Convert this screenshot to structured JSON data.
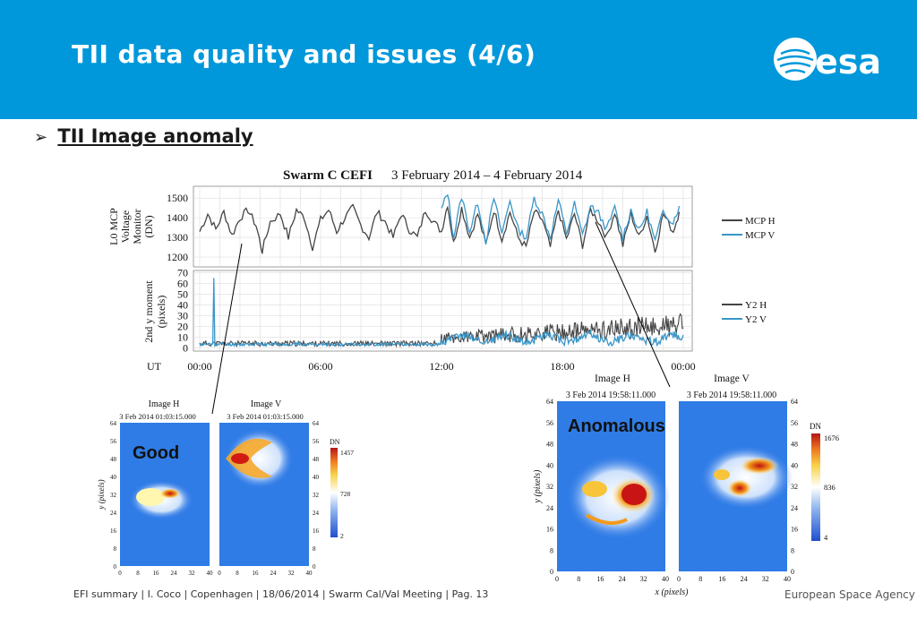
{
  "slide": {
    "title": "TII data quality and issues (4/6)",
    "bullet": "TII Image anomaly",
    "footer": "EFI summary | I. Coco | Copenhagen | 18/06/2014 | Swarm Cal/Val Meeting | Pag. 13",
    "footer_right": "European Space Agency",
    "logo_text": "esa",
    "colors": {
      "header": "#0098db",
      "series_h": "#444444",
      "series_v": "#3a96c8"
    }
  },
  "chart_data": [
    {
      "type": "line",
      "title_bold": "Swarm C CEFI",
      "title_rest": "3 February 2014 – 4 February 2014",
      "ylabel": [
        "L0 MCP",
        "Voltage",
        "Monitor",
        "(DN)"
      ],
      "yticks": [
        1200,
        1300,
        1400,
        1500
      ],
      "ylim": [
        1150,
        1560
      ],
      "xlim": [
        0,
        24
      ],
      "grid": true,
      "legend": "right",
      "series": [
        {
          "name": "MCP H",
          "values_desc": "fluctuates between ~1200 and ~1450 throughout the day"
        },
        {
          "name": "MCP V",
          "values_desc": "visible after 12:00, ~1300–1520"
        }
      ],
      "profile_h": [
        [
          0,
          1330
        ],
        [
          0.4,
          1420
        ],
        [
          0.8,
          1340
        ],
        [
          1.2,
          1430
        ],
        [
          1.6,
          1310
        ],
        [
          2,
          1400
        ],
        [
          2.4,
          1440
        ],
        [
          2.8,
          1360
        ],
        [
          3.1,
          1230
        ],
        [
          3.5,
          1380
        ],
        [
          4,
          1420
        ],
        [
          4.4,
          1300
        ],
        [
          4.8,
          1440
        ],
        [
          5.2,
          1400
        ],
        [
          5.6,
          1250
        ],
        [
          6,
          1390
        ],
        [
          6.4,
          1440
        ],
        [
          6.8,
          1330
        ],
        [
          7.2,
          1400
        ],
        [
          7.6,
          1450
        ],
        [
          8,
          1360
        ],
        [
          8.4,
          1300
        ],
        [
          8.8,
          1430
        ],
        [
          9.2,
          1380
        ],
        [
          9.6,
          1300
        ],
        [
          10,
          1420
        ],
        [
          10.4,
          1340
        ],
        [
          10.8,
          1300
        ],
        [
          11.2,
          1440
        ],
        [
          11.6,
          1380
        ],
        [
          12,
          1330
        ],
        [
          12.3,
          1470
        ],
        [
          12.6,
          1270
        ],
        [
          13,
          1450
        ],
        [
          13.4,
          1300
        ],
        [
          13.8,
          1420
        ],
        [
          14.2,
          1260
        ],
        [
          14.6,
          1440
        ],
        [
          15,
          1290
        ],
        [
          15.4,
          1430
        ],
        [
          15.8,
          1300
        ],
        [
          16.2,
          1250
        ],
        [
          16.6,
          1430
        ],
        [
          17,
          1390
        ],
        [
          17.4,
          1250
        ],
        [
          17.8,
          1440
        ],
        [
          18.2,
          1290
        ],
        [
          18.6,
          1420
        ],
        [
          19,
          1260
        ],
        [
          19.4,
          1440
        ],
        [
          19.8,
          1380
        ],
        [
          20.2,
          1300
        ],
        [
          20.6,
          1430
        ],
        [
          21,
          1260
        ],
        [
          21.4,
          1420
        ],
        [
          21.8,
          1300
        ],
        [
          22.2,
          1410
        ],
        [
          22.6,
          1230
        ],
        [
          23,
          1420
        ],
        [
          23.5,
          1330
        ],
        [
          23.8,
          1430
        ]
      ],
      "profile_v": [
        [
          12,
          1440
        ],
        [
          12.3,
          1530
        ],
        [
          12.6,
          1300
        ],
        [
          13,
          1510
        ],
        [
          13.4,
          1330
        ],
        [
          13.8,
          1480
        ],
        [
          14.2,
          1280
        ],
        [
          14.6,
          1500
        ],
        [
          15,
          1320
        ],
        [
          15.4,
          1490
        ],
        [
          15.8,
          1340
        ],
        [
          16.2,
          1300
        ],
        [
          16.6,
          1500
        ],
        [
          17,
          1420
        ],
        [
          17.4,
          1300
        ],
        [
          17.8,
          1490
        ],
        [
          18.2,
          1320
        ],
        [
          18.6,
          1470
        ],
        [
          19,
          1310
        ],
        [
          19.4,
          1460
        ],
        [
          19.8,
          1420
        ],
        [
          20.2,
          1340
        ],
        [
          20.6,
          1450
        ],
        [
          21,
          1300
        ],
        [
          21.4,
          1440
        ],
        [
          21.8,
          1330
        ],
        [
          22.2,
          1430
        ],
        [
          22.6,
          1280
        ],
        [
          23,
          1430
        ],
        [
          23.5,
          1380
        ],
        [
          23.8,
          1460
        ]
      ],
      "_": ""
    },
    {
      "type": "line",
      "ylabel": [
        "2nd y moment",
        "(pixels)"
      ],
      "yticks": [
        0,
        10,
        20,
        30,
        40,
        50,
        60,
        70
      ],
      "ylim": [
        -3,
        72
      ],
      "xlim": [
        0,
        24
      ],
      "xlabel": "UT",
      "xticks": [
        "00:00",
        "06:00",
        "12:00",
        "18:00",
        "00:00"
      ],
      "grid": true,
      "legend": "right",
      "series": [
        {
          "name": "Y2  H",
          "values_desc": "near 0–8 until 12:00, then rising to 10–30"
        },
        {
          "name": "Y2  V",
          "values_desc": "near 0–5 with spike to ~65 at ~00:40, ~5–20 after 12:00"
        }
      ],
      "spike_v": {
        "x": 0.7,
        "y": 65
      }
    },
    {
      "type": "heatmap",
      "label": "Good",
      "panels": [
        {
          "name": "Image H",
          "timestamp": "3 Feb 2014 01:03:15.000"
        },
        {
          "name": "Image V",
          "timestamp": "3 Feb 2014 01:03:15.000"
        }
      ],
      "yticks": [
        0,
        8,
        16,
        24,
        32,
        40,
        48,
        56,
        64
      ],
      "xticks": [
        0,
        8,
        16,
        24,
        32,
        40
      ],
      "ylabel": "y (pixels)",
      "colorbar": {
        "title": "DN",
        "max": "1457",
        "mid": "728",
        "min": "2"
      }
    },
    {
      "type": "heatmap",
      "label": "Anomalous",
      "panels": [
        {
          "name": "Image H",
          "timestamp": "3 Feb 2014 19:58:11.000"
        },
        {
          "name": "Image V",
          "timestamp": "3 Feb 2014 19:58:11.000"
        }
      ],
      "yticks": [
        0,
        8,
        16,
        24,
        32,
        40,
        48,
        56,
        64
      ],
      "xticks": [
        0,
        8,
        16,
        24,
        32,
        40
      ],
      "xlabel": "x (pixels)",
      "ylabel": "y (pixels)",
      "colorbar": {
        "title": "DN",
        "max": "1676",
        "mid": "836",
        "min": "4"
      }
    }
  ]
}
